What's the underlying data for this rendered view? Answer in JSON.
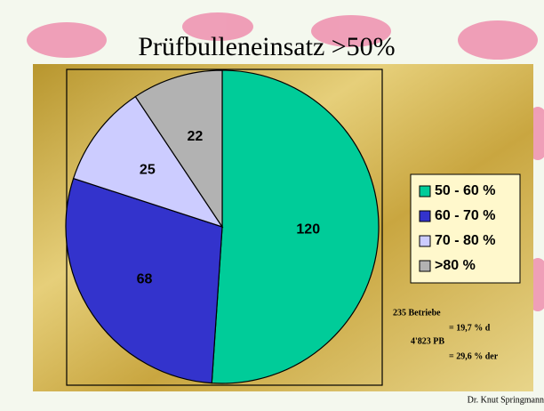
{
  "chart_data": {
    "type": "pie",
    "title": "Prüfbulleneinsatz >50%",
    "categories": [
      "50 - 60 %",
      "60 - 70 %",
      "70 - 80 %",
      ">80 %"
    ],
    "values": [
      120,
      68,
      25,
      22
    ],
    "colors": [
      "#00cc99",
      "#3333cc",
      "#ccccff",
      "#b2b2b2"
    ],
    "legend": "right",
    "annotations": [
      "235 Betriebe",
      "= 19,7 % d",
      "4'823 PB",
      "= 29,6 % der"
    ],
    "footer": "Dr. Knut Springmann"
  }
}
